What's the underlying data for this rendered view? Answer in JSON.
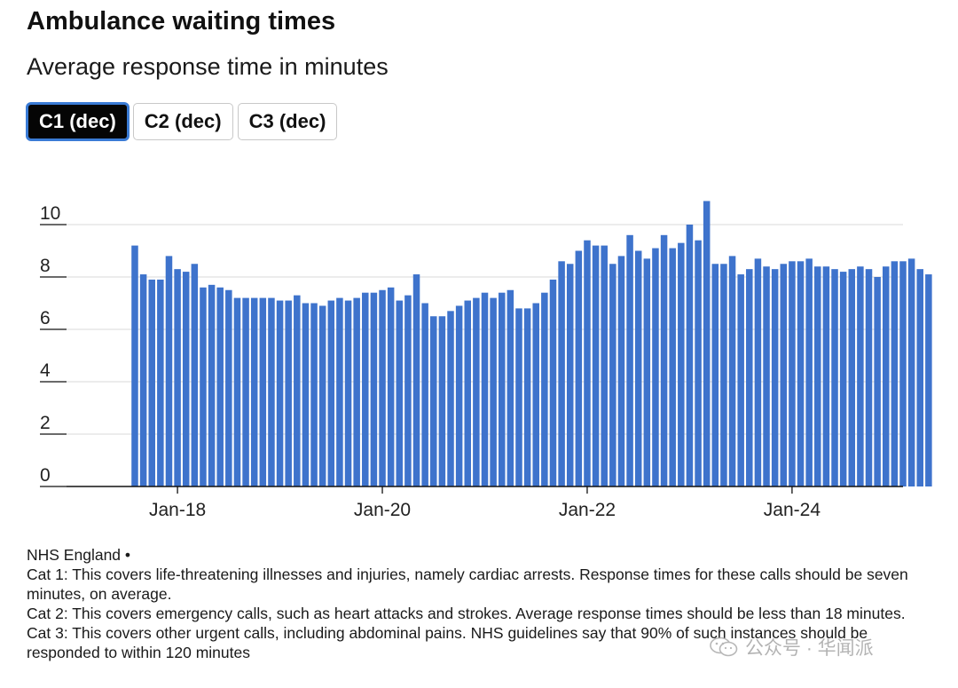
{
  "title": "Ambulance waiting times",
  "subtitle": "Average response time in minutes",
  "tabs": [
    {
      "label": "C1 (dec)",
      "active": true
    },
    {
      "label": "C2 (dec)",
      "active": false
    },
    {
      "label": "C3 (dec)",
      "active": false
    }
  ],
  "colors": {
    "bar": "#3e73cc",
    "grid": "#d9d9d9",
    "axis": "#111111"
  },
  "chart_data": {
    "type": "bar",
    "title": "Average response time in minutes",
    "series_name": "C1 (dec)",
    "xlabel": "",
    "ylabel": "",
    "ylim": [
      0,
      10
    ],
    "yticks": [
      0,
      2,
      4,
      6,
      8,
      10
    ],
    "xlim": [
      "2016-12",
      "2025-02"
    ],
    "xtick_labels": [
      {
        "label": "Jan-18",
        "month": "2018-01"
      },
      {
        "label": "Jan-20",
        "month": "2020-01"
      },
      {
        "label": "Jan-22",
        "month": "2022-01"
      },
      {
        "label": "Jan-24",
        "month": "2024-01"
      }
    ],
    "start_month": "2017-08",
    "values": [
      9.2,
      8.1,
      7.9,
      7.9,
      8.8,
      8.3,
      8.2,
      8.5,
      7.6,
      7.7,
      7.6,
      7.5,
      7.2,
      7.2,
      7.2,
      7.2,
      7.2,
      7.1,
      7.1,
      7.3,
      7.0,
      7.0,
      6.9,
      7.1,
      7.2,
      7.1,
      7.2,
      7.4,
      7.4,
      7.5,
      7.6,
      7.1,
      7.3,
      8.1,
      7.0,
      6.5,
      6.5,
      6.7,
      6.9,
      7.1,
      7.2,
      7.4,
      7.2,
      7.4,
      7.5,
      6.8,
      6.8,
      7.0,
      7.4,
      7.9,
      8.6,
      8.5,
      9.0,
      9.4,
      9.2,
      9.2,
      8.5,
      8.8,
      9.6,
      9.0,
      8.7,
      9.1,
      9.6,
      9.1,
      9.3,
      10.0,
      9.4,
      10.9,
      8.5,
      8.5,
      8.8,
      8.1,
      8.3,
      8.7,
      8.4,
      8.3,
      8.5,
      8.6,
      8.6,
      8.7,
      8.4,
      8.4,
      8.3,
      8.2,
      8.3,
      8.4,
      8.3,
      8.0,
      8.4,
      8.6,
      8.6,
      8.7,
      8.3,
      8.1
    ]
  },
  "footer": {
    "source": "NHS England •",
    "cat1": "Cat 1: This covers life-threatening illnesses and injuries, namely cardiac arrests. Response times for these calls should be seven minutes, on average.",
    "cat2": "Cat 2: This covers emergency calls, such as heart attacks and strokes. Average response times should be less than 18 minutes.",
    "cat3": "Cat 3: This covers other urgent calls, including abdominal pains. NHS guidelines say that 90% of such instances should be responded to within 120 minutes"
  },
  "watermark": {
    "text": "公众号 · 华闻派"
  }
}
